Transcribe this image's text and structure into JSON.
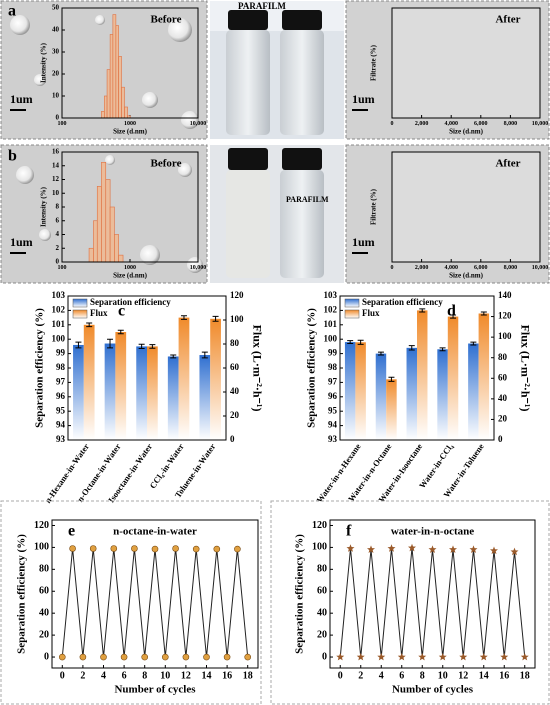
{
  "photo_labels": [
    "PARAFILM",
    "PARAFILM"
  ],
  "chart_data": [
    {
      "type": "histogram",
      "panel_label": "a",
      "annotation": "Before",
      "scale_label": "1um",
      "xlabel": "Size (d.nm)",
      "ylabel": "Intensity (%)",
      "color": "#f0b890",
      "xlog": true,
      "xlim": [
        100,
        10000
      ],
      "xticks": [
        100,
        1000,
        {
          "value": 10000,
          "label": "10,000"
        }
      ],
      "ylim": [
        0,
        50
      ],
      "yticks": [
        0,
        10,
        20,
        30,
        40,
        50
      ],
      "bins": [
        380,
        420,
        460,
        510,
        560,
        620,
        680,
        750,
        830,
        920,
        1010
      ],
      "values": [
        3,
        10,
        22,
        38,
        47,
        42,
        28,
        14,
        5,
        1
      ]
    },
    {
      "type": "histogram",
      "panel_label": "b",
      "annotation": "Before",
      "scale_label": "1um",
      "xlabel": "Size (d.nm)",
      "ylabel": "Intensity (%)",
      "color": "#f0b890",
      "xlog": true,
      "xlim": [
        100,
        10000
      ],
      "xticks": [
        100,
        1000,
        {
          "value": 10000,
          "label": "10,000"
        }
      ],
      "ylim": [
        0,
        16
      ],
      "yticks": [
        0,
        2,
        4,
        6,
        8,
        10,
        12,
        14,
        16
      ],
      "bins": [
        250,
        290,
        330,
        380,
        440,
        510,
        590,
        680,
        790
      ],
      "values": [
        2,
        6,
        11,
        14.5,
        12,
        8,
        4,
        1
      ]
    },
    {
      "type": "line",
      "annotation": "After",
      "scale_label": "1um",
      "xlabel": "Size (d.nm)",
      "ylabel": "Filtrate (%)",
      "xlim": [
        0,
        10000
      ],
      "xticks": [
        0,
        {
          "value": 2000,
          "label": "2,000"
        },
        {
          "value": 4000,
          "label": "4,000"
        },
        {
          "value": 6000,
          "label": "6,000"
        },
        {
          "value": 8000,
          "label": "8,000"
        },
        {
          "value": 10000,
          "label": "10,000"
        }
      ],
      "series": []
    },
    {
      "type": "line",
      "annotation": "After",
      "scale_label": "1um",
      "xlabel": "Size (d.nm)",
      "ylabel": "Filtrate (%)",
      "xlim": [
        0,
        10000
      ],
      "xticks": [
        0,
        {
          "value": 2000,
          "label": "2,000"
        },
        {
          "value": 4000,
          "label": "4,000"
        },
        {
          "value": 6000,
          "label": "6,000"
        },
        {
          "value": 8000,
          "label": "8,000"
        },
        {
          "value": 10000,
          "label": "10,000"
        }
      ],
      "series": []
    },
    {
      "type": "bar",
      "panel_label": "c",
      "ylabel": "Separation efficiency (%)",
      "y2label": "Flux (L·m⁻²·h⁻¹)",
      "categories": [
        "n-Hexane-in-Water",
        "n-Octane-in-Water",
        "Isooctane-in-Water",
        "CCl₄-in-Water",
        "Toluene-in-Water"
      ],
      "ylim": [
        93,
        103
      ],
      "yticks": [
        93,
        94,
        95,
        96,
        97,
        98,
        99,
        100,
        101,
        102,
        103
      ],
      "y2lim": [
        0,
        120
      ],
      "y2ticks": [
        0,
        20,
        40,
        60,
        80,
        100,
        120
      ],
      "legend": "top-left",
      "series": [
        {
          "name": "Separation efficiency",
          "color": "#2f6fd0",
          "values": [
            99.6,
            99.7,
            99.5,
            98.8,
            98.9
          ],
          "errors": [
            0.2,
            0.3,
            0.15,
            0.1,
            0.2
          ]
        },
        {
          "name": "Flux",
          "color": "#f08a2a",
          "axis": "y2",
          "values": [
            96,
            90,
            78,
            102,
            101
          ],
          "errors": [
            1.5,
            1.5,
            1.5,
            1.5,
            2
          ]
        }
      ]
    },
    {
      "type": "bar",
      "panel_label": "d",
      "ylabel": "Separation efficiency (%)",
      "y2label": "Flux (L·m⁻²·h⁻¹)",
      "categories": [
        "Water-in-n-Hexane",
        "Water-in-n-Octane",
        "Water-in-Isooctane",
        "Water-in-CCl₄",
        "Water-in-Toluene"
      ],
      "ylim": [
        93,
        103
      ],
      "yticks": [
        93,
        94,
        95,
        96,
        97,
        98,
        99,
        100,
        101,
        102,
        103
      ],
      "y2lim": [
        0,
        140
      ],
      "y2ticks": [
        0,
        20,
        40,
        60,
        80,
        100,
        120,
        140
      ],
      "legend": "top-left",
      "series": [
        {
          "name": "Separation efficiency",
          "color": "#2f6fd0",
          "values": [
            99.8,
            99.0,
            99.4,
            99.3,
            99.7
          ],
          "errors": [
            0.1,
            0.1,
            0.15,
            0.1,
            0.1
          ]
        },
        {
          "name": "Flux",
          "color": "#f08a2a",
          "axis": "y2",
          "values": [
            95,
            59,
            126,
            120,
            123
          ],
          "errors": [
            2,
            2,
            1.5,
            1.5,
            1.5
          ]
        }
      ]
    },
    {
      "type": "line",
      "panel_label": "e",
      "title": "n-octane-in-water",
      "xlabel": "Number of cycles",
      "ylabel": "Separation efficiency (%)",
      "xlim": [
        -1,
        19
      ],
      "xticks": [
        0,
        2,
        4,
        6,
        8,
        10,
        12,
        14,
        16,
        18
      ],
      "ylim": [
        -10,
        125
      ],
      "yticks": [
        0,
        20,
        40,
        60,
        80,
        100,
        120
      ],
      "x": [
        0,
        1,
        2,
        3,
        4,
        5,
        6,
        7,
        8,
        9,
        10,
        11,
        12,
        13,
        14,
        15,
        16,
        17,
        18
      ],
      "marker": "circle",
      "series": [
        {
          "color": "#222222",
          "marker_color": "#e0a040",
          "values": [
            0,
            99,
            0,
            99,
            0,
            99,
            0,
            99,
            0,
            98.5,
            0,
            99,
            0,
            98.5,
            0,
            98.5,
            0,
            98.5,
            0
          ]
        }
      ]
    },
    {
      "type": "line",
      "panel_label": "f",
      "title": "water-in-n-octane",
      "xlabel": "Number of cycles",
      "ylabel": "Separation efficiency (%)",
      "xlim": [
        -1,
        19
      ],
      "xticks": [
        0,
        2,
        4,
        6,
        8,
        10,
        12,
        14,
        16,
        18
      ],
      "ylim": [
        -10,
        125
      ],
      "yticks": [
        0,
        20,
        40,
        60,
        80,
        100,
        120
      ],
      "x": [
        0,
        1,
        2,
        3,
        4,
        5,
        6,
        7,
        8,
        9,
        10,
        11,
        12,
        13,
        14,
        15,
        16,
        17,
        18
      ],
      "marker": "star",
      "series": [
        {
          "color": "#222222",
          "marker_color": "#9a5a2a",
          "values": [
            0,
            99,
            0,
            98,
            0,
            99,
            0,
            99.5,
            0,
            98,
            0,
            98,
            0,
            98,
            0,
            97,
            0,
            96,
            0
          ]
        }
      ]
    }
  ]
}
